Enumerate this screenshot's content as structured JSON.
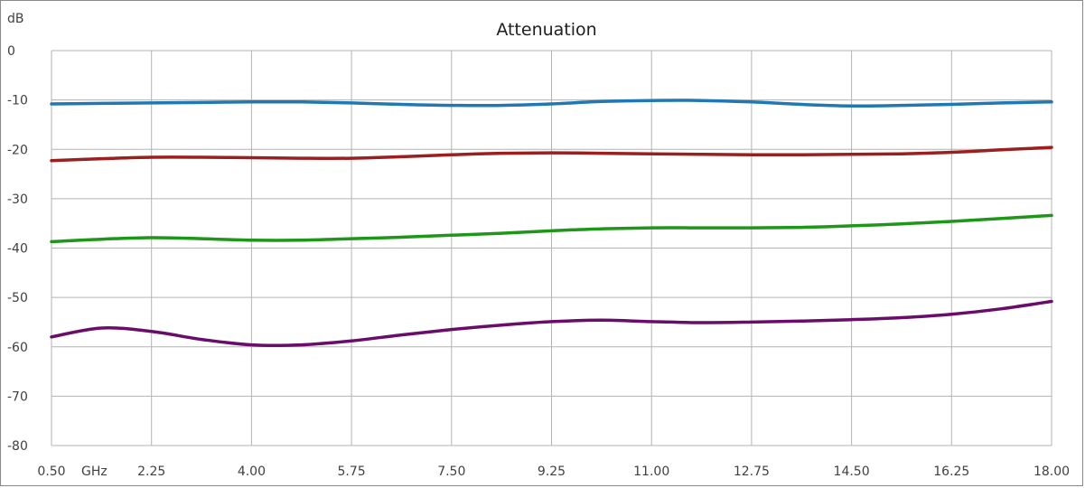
{
  "chart_data": {
    "type": "line",
    "title": "Attenuation",
    "ylabel": "dB",
    "xlabel": "GHz",
    "x_ticks": [
      "0.50",
      "2.25",
      "4.00",
      "5.75",
      "7.50",
      "9.25",
      "11.00",
      "12.75",
      "14.50",
      "16.25",
      "18.00"
    ],
    "y_ticks": [
      "0",
      "-10",
      "-20",
      "-30",
      "-40",
      "-50",
      "-60",
      "-70",
      "-80"
    ],
    "xlim": [
      0.5,
      18.0
    ],
    "ylim": [
      -80,
      0
    ],
    "grid": true,
    "x": [
      0.5,
      1.375,
      2.25,
      3.125,
      4.0,
      4.875,
      5.75,
      6.625,
      7.5,
      8.375,
      9.25,
      10.125,
      11.0,
      11.875,
      12.75,
      13.625,
      14.5,
      15.375,
      16.25,
      17.125,
      18.0
    ],
    "series": [
      {
        "color": "#1f77b4",
        "values": [
          -10.8,
          -10.7,
          -10.6,
          -10.5,
          -10.4,
          -10.4,
          -10.6,
          -10.9,
          -11.1,
          -11.1,
          -10.8,
          -10.3,
          -10.1,
          -10.1,
          -10.4,
          -10.9,
          -11.2,
          -11.1,
          -10.9,
          -10.6,
          -10.4
        ]
      },
      {
        "color": "#9b1f1f",
        "values": [
          -22.3,
          -21.9,
          -21.6,
          -21.6,
          -21.7,
          -21.8,
          -21.8,
          -21.5,
          -21.1,
          -20.8,
          -20.7,
          -20.8,
          -20.9,
          -21.0,
          -21.1,
          -21.1,
          -21.0,
          -20.9,
          -20.6,
          -20.1,
          -19.6
        ]
      },
      {
        "color": "#1e9618",
        "values": [
          -38.7,
          -38.2,
          -37.9,
          -38.1,
          -38.4,
          -38.4,
          -38.1,
          -37.8,
          -37.4,
          -37.0,
          -36.5,
          -36.1,
          -35.9,
          -35.9,
          -35.9,
          -35.8,
          -35.5,
          -35.1,
          -34.6,
          -34.0,
          -33.4
        ]
      },
      {
        "color": "#6a0d6a",
        "values": [
          -58.0,
          -56.2,
          -56.9,
          -58.5,
          -59.6,
          -59.6,
          -58.8,
          -57.6,
          -56.5,
          -55.6,
          -54.9,
          -54.6,
          -54.9,
          -55.1,
          -55.0,
          -54.8,
          -54.5,
          -54.1,
          -53.4,
          -52.3,
          -50.8
        ]
      }
    ]
  }
}
